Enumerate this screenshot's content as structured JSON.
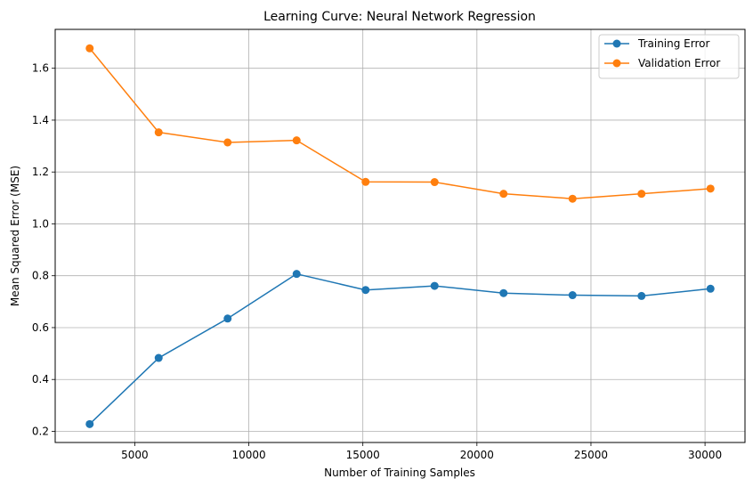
{
  "chart_data": {
    "type": "line",
    "title": "Learning Curve: Neural Network Regression",
    "xlabel": "Number of Training Samples",
    "ylabel": "Mean Squared Error (MSE)",
    "x": [
      3024,
      6048,
      9072,
      12096,
      15120,
      18144,
      21168,
      24192,
      27216,
      30240
    ],
    "xlim": [
      1512,
      31752
    ],
    "ylim": [
      0.157,
      1.75
    ],
    "xticks": [
      5000,
      10000,
      15000,
      20000,
      25000,
      30000
    ],
    "yticks": [
      0.2,
      0.4,
      0.6,
      0.8,
      1.0,
      1.2,
      1.4,
      1.6
    ],
    "xtick_labels": [
      "5000",
      "10000",
      "15000",
      "20000",
      "25000",
      "30000"
    ],
    "ytick_labels": [
      "0.2",
      "0.4",
      "0.6",
      "0.8",
      "1.0",
      "1.2",
      "1.4",
      "1.6"
    ],
    "grid": true,
    "legend_position": "top-right",
    "series": [
      {
        "name": "Training Error",
        "color": "#1f77b4",
        "marker": "circle",
        "values": [
          0.228,
          0.483,
          0.635,
          0.807,
          0.745,
          0.761,
          0.733,
          0.725,
          0.722,
          0.75
        ]
      },
      {
        "name": "Validation Error",
        "color": "#ff7f0e",
        "marker": "circle",
        "values": [
          1.677,
          1.353,
          1.314,
          1.322,
          1.162,
          1.161,
          1.116,
          1.097,
          1.116,
          1.136
        ]
      }
    ]
  }
}
